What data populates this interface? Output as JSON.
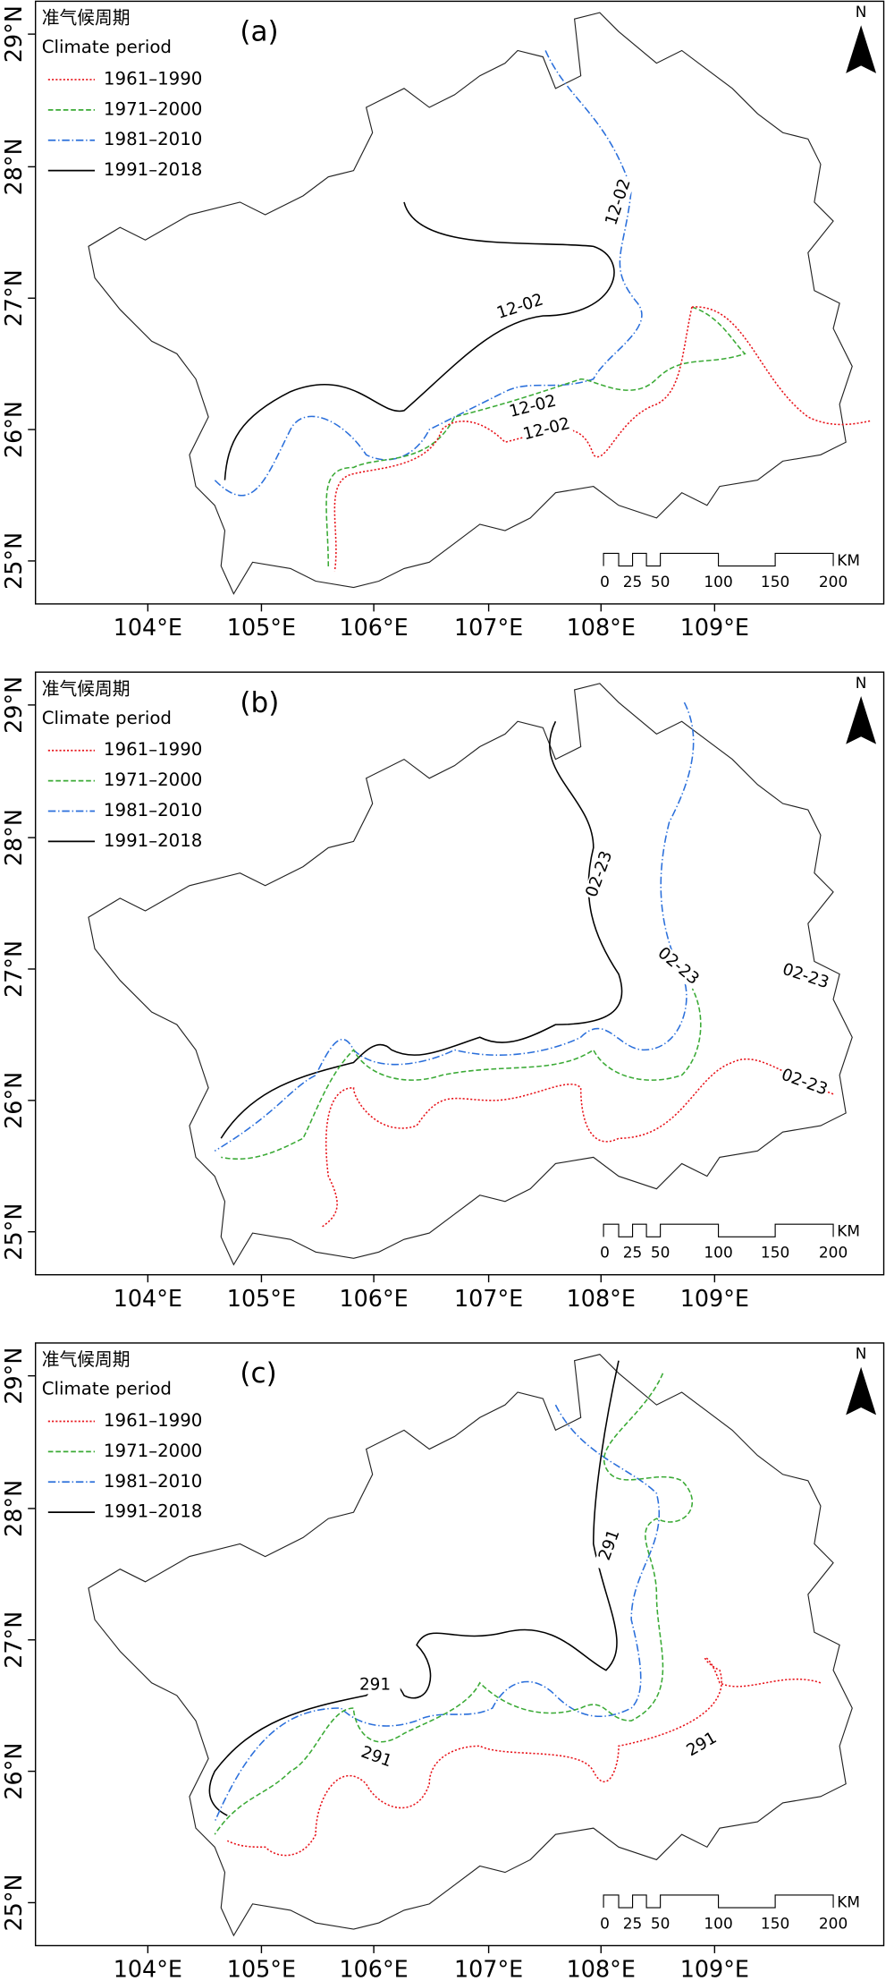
{
  "legend": {
    "title_zh": "准气候周期",
    "title_en": "Climate period",
    "periods": [
      "1961–1990",
      "1971–2000",
      "1981–2010",
      "1991–2018"
    ]
  },
  "x_axis_labels": [
    "104°E",
    "105°E",
    "106°E",
    "107°E",
    "108°E",
    "109°E"
  ],
  "y_axis_labels": [
    "29°N",
    "28°N",
    "27°N",
    "26°N",
    "25°N"
  ],
  "north": "N",
  "scale_bar": {
    "labels": [
      "0",
      "25",
      "50",
      "100",
      "150",
      "200"
    ],
    "unit": "KM"
  },
  "panels": [
    {
      "label": "(a)",
      "contour_labels": [
        "12-02",
        "12-02",
        "12-02",
        "12-02"
      ]
    },
    {
      "label": "(b)",
      "contour_labels": [
        "02-23",
        "02-23",
        "02-23",
        "02-23"
      ]
    },
    {
      "label": "(c)",
      "contour_labels": [
        "291",
        "291",
        "291",
        "291"
      ]
    }
  ]
}
